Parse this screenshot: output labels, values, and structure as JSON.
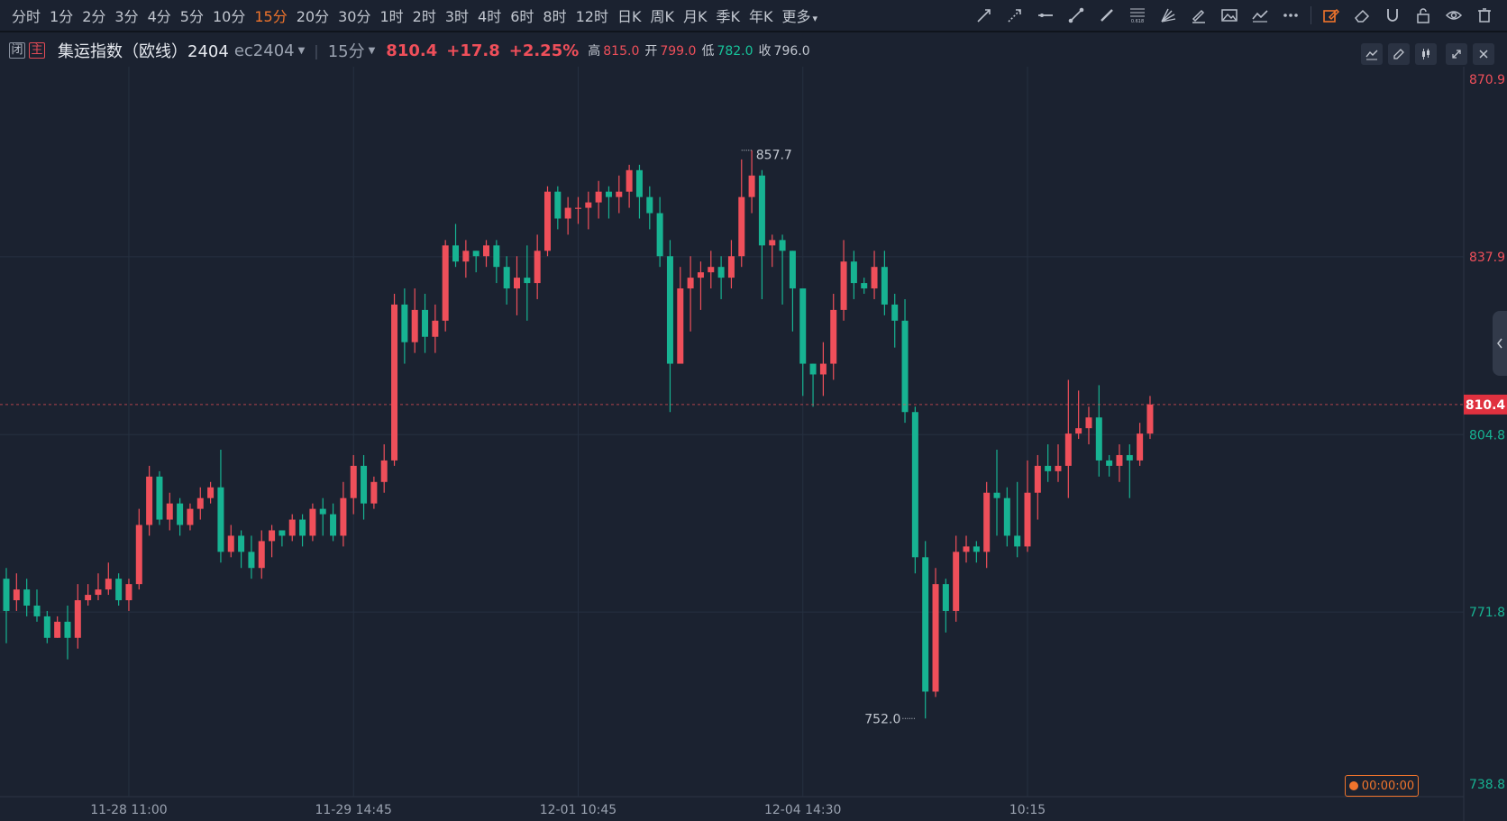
{
  "toolbar": {
    "periods": [
      "分时",
      "1分",
      "2分",
      "3分",
      "4分",
      "5分",
      "10分",
      "15分",
      "20分",
      "30分",
      "1时",
      "2时",
      "3时",
      "4时",
      "6时",
      "8时",
      "12时",
      "日K",
      "周K",
      "月K",
      "季K",
      "年K",
      "更多"
    ],
    "active_period": "15分",
    "fib_label": "0.618"
  },
  "info": {
    "tag_close": "闭",
    "tag_main": "主",
    "name": "集运指数（欧线）2404",
    "code": "ec2404",
    "interval": "15分",
    "price": "810.4",
    "change": "+17.8",
    "change_pct": "+2.25%",
    "high_label": "高",
    "high": "815.0",
    "open_label": "开",
    "open": "799.0",
    "low_label": "低",
    "low": "782.0",
    "close_label": "收",
    "close": "796.0"
  },
  "countdown": "00:00:00",
  "colors": {
    "up": "#ef4f5a",
    "down": "#17b392",
    "accent": "#f0742c",
    "bg": "#1b2230"
  },
  "chart_data": {
    "type": "candlestick",
    "ylim": [
      738.8,
      870.9
    ],
    "y_ticks": [
      "870.9",
      "837.9",
      "804.8",
      "771.8",
      "738.8"
    ],
    "x_ticks": [
      {
        "index": 12,
        "label": "11-28 11:00"
      },
      {
        "index": 34,
        "label": "11-29 14:45"
      },
      {
        "index": 56,
        "label": "12-01 10:45"
      },
      {
        "index": 78,
        "label": "12-04 14:30"
      },
      {
        "index": 100,
        "label": "10:15"
      }
    ],
    "last_price": "810.4",
    "max_label": "857.7",
    "max_index": 72,
    "min_label": "752.0",
    "min_index": 89,
    "candles": [
      [
        778,
        772,
        780,
        766
      ],
      [
        774,
        776,
        779,
        772
      ],
      [
        776,
        773,
        778,
        771
      ],
      [
        773,
        771,
        776,
        770
      ],
      [
        771,
        767,
        772,
        766
      ],
      [
        767,
        770,
        771,
        767
      ],
      [
        770,
        767,
        773,
        763
      ],
      [
        767,
        774,
        777,
        765
      ],
      [
        774,
        775,
        777,
        773
      ],
      [
        775,
        776,
        779,
        774
      ],
      [
        776,
        778,
        781,
        775
      ],
      [
        778,
        774,
        779,
        773
      ],
      [
        774,
        777,
        778,
        772
      ],
      [
        777,
        788,
        791,
        776
      ],
      [
        788,
        797,
        799,
        786
      ],
      [
        797,
        789,
        798,
        788
      ],
      [
        789,
        792,
        794,
        787
      ],
      [
        792,
        788,
        793,
        786
      ],
      [
        788,
        791,
        792,
        787
      ],
      [
        791,
        793,
        795,
        789
      ],
      [
        793,
        795,
        796,
        792
      ],
      [
        795,
        783,
        802,
        781
      ],
      [
        783,
        786,
        788,
        782
      ],
      [
        786,
        783,
        787,
        780
      ],
      [
        783,
        780,
        786,
        778
      ],
      [
        780,
        785,
        787,
        778
      ],
      [
        785,
        787,
        788,
        782
      ],
      [
        787,
        786,
        787,
        784
      ],
      [
        786,
        789,
        790,
        785
      ],
      [
        789,
        786,
        790,
        784
      ],
      [
        786,
        791,
        792,
        785
      ],
      [
        791,
        790,
        793,
        786
      ],
      [
        790,
        786,
        792,
        785
      ],
      [
        786,
        793,
        796,
        784
      ],
      [
        793,
        799,
        801,
        790
      ],
      [
        799,
        792,
        801,
        789
      ],
      [
        792,
        796,
        797,
        791
      ],
      [
        796,
        800,
        803,
        794
      ],
      [
        800,
        829,
        831,
        799
      ],
      [
        829,
        822,
        832,
        818
      ],
      [
        822,
        828,
        832,
        820
      ],
      [
        828,
        823,
        831,
        820
      ],
      [
        823,
        826,
        829,
        820
      ],
      [
        826,
        840,
        841,
        824
      ],
      [
        840,
        837,
        844,
        836
      ],
      [
        837,
        839,
        841,
        834
      ],
      [
        839,
        838,
        839,
        835
      ],
      [
        838,
        840,
        841,
        836
      ],
      [
        840,
        836,
        841,
        833
      ],
      [
        836,
        832,
        838,
        829
      ],
      [
        832,
        834,
        838,
        827
      ],
      [
        834,
        833,
        840,
        826
      ],
      [
        833,
        839,
        842,
        830
      ],
      [
        839,
        850,
        851,
        838
      ],
      [
        850,
        845,
        851,
        843
      ],
      [
        845,
        847,
        849,
        842
      ],
      [
        847,
        847,
        849,
        844
      ],
      [
        847,
        848,
        850,
        843
      ],
      [
        848,
        850,
        852,
        845
      ],
      [
        850,
        849,
        851,
        845
      ],
      [
        849,
        850,
        853,
        846
      ],
      [
        850,
        854,
        855,
        847
      ],
      [
        854,
        849,
        855,
        845
      ],
      [
        849,
        846,
        851,
        843
      ],
      [
        846,
        838,
        849,
        836
      ],
      [
        838,
        818,
        841,
        809
      ],
      [
        818,
        832,
        836,
        821
      ],
      [
        832,
        834,
        838,
        824
      ],
      [
        834,
        835,
        837,
        828
      ],
      [
        835,
        836,
        839,
        832
      ],
      [
        836,
        834,
        838,
        830
      ],
      [
        834,
        838,
        841,
        832
      ],
      [
        838,
        849,
        856,
        836
      ],
      [
        849,
        853,
        857.7,
        846
      ],
      [
        853,
        840,
        854,
        830
      ],
      [
        840,
        841,
        842,
        836
      ],
      [
        841,
        839,
        842,
        829
      ],
      [
        839,
        832,
        839,
        824
      ],
      [
        832,
        818,
        832,
        812
      ],
      [
        818,
        816,
        818,
        810
      ],
      [
        816,
        818,
        822,
        812
      ],
      [
        818,
        828,
        831,
        815
      ],
      [
        828,
        837,
        841,
        826
      ],
      [
        837,
        833,
        839,
        830
      ],
      [
        833,
        832,
        834,
        831
      ],
      [
        832,
        836,
        839,
        830
      ],
      [
        836,
        829,
        839,
        827
      ],
      [
        829,
        826,
        831,
        821
      ],
      [
        826,
        809,
        830,
        807
      ],
      [
        809,
        782,
        810,
        779
      ],
      [
        782,
        757,
        785,
        752
      ],
      [
        757,
        777,
        780,
        756
      ],
      [
        777,
        772,
        778,
        768
      ],
      [
        772,
        783,
        786,
        770
      ],
      [
        783,
        784,
        786,
        781
      ],
      [
        784,
        783,
        785,
        781
      ],
      [
        783,
        794,
        796,
        780
      ],
      [
        794,
        793,
        802,
        786
      ],
      [
        793,
        786,
        795,
        784
      ],
      [
        786,
        784,
        796,
        782
      ],
      [
        784,
        794,
        800,
        783
      ],
      [
        794,
        799,
        801,
        789
      ],
      [
        799,
        798,
        803,
        796
      ],
      [
        798,
        799,
        803,
        796
      ],
      [
        799,
        805,
        815,
        793
      ],
      [
        805,
        806,
        813,
        804
      ],
      [
        806,
        808,
        810,
        803
      ],
      [
        808,
        800,
        814,
        797
      ],
      [
        800,
        799,
        801,
        797
      ],
      [
        799,
        801,
        803,
        796
      ],
      [
        801,
        800,
        803,
        793
      ],
      [
        800,
        805,
        807,
        799
      ],
      [
        805,
        810.4,
        812,
        804
      ]
    ]
  }
}
